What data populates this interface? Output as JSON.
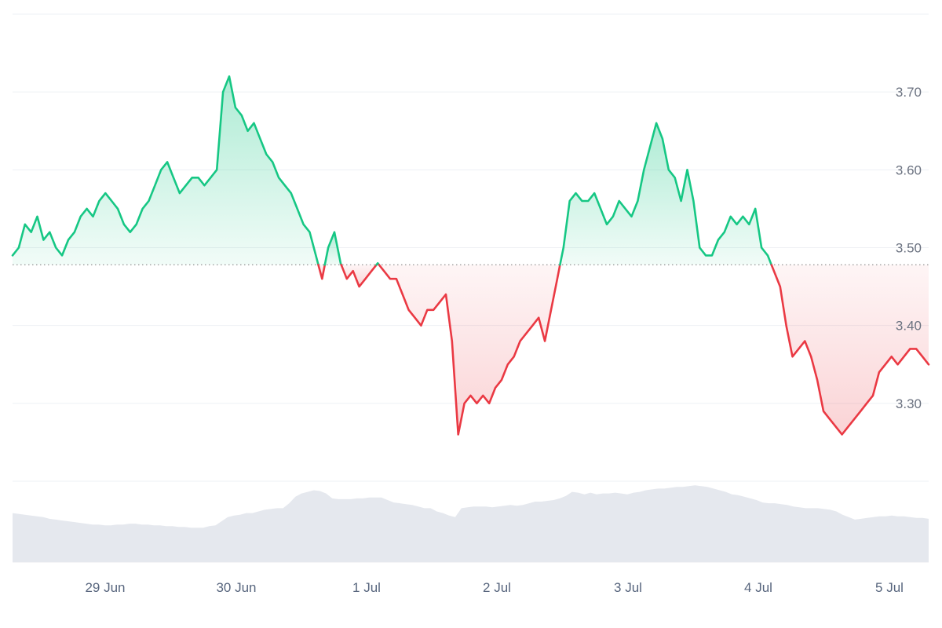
{
  "chart_data": {
    "type": "line",
    "title": "",
    "xlabel": "",
    "ylabel": "",
    "x_ticks": [
      "29 Jun",
      "30 Jun",
      "1 Jul",
      "2 Jul",
      "3 Jul",
      "4 Jul",
      "5 Jul"
    ],
    "y_ticks": [
      "3.30",
      "3.40",
      "3.50",
      "3.60",
      "3.70"
    ],
    "ylim": [
      3.2,
      3.8
    ],
    "baseline": 3.478,
    "grid": true,
    "colors": {
      "above": "#16c784",
      "below": "#ea3943",
      "volume": "#e5e8ee",
      "baseline": "#888888"
    },
    "series": [
      {
        "values": [
          3.49,
          3.5,
          3.53,
          3.52,
          3.54,
          3.51,
          3.52,
          3.5,
          3.49,
          3.51,
          3.52,
          3.54,
          3.55,
          3.54,
          3.56,
          3.57,
          3.56,
          3.55,
          3.53,
          3.52,
          3.53,
          3.55,
          3.56,
          3.58,
          3.6,
          3.61,
          3.59,
          3.57,
          3.58,
          3.59,
          3.59,
          3.58,
          3.59,
          3.6,
          3.7,
          3.72,
          3.68,
          3.67,
          3.65,
          3.66,
          3.64,
          3.62,
          3.61,
          3.59,
          3.58,
          3.57,
          3.55,
          3.53,
          3.52,
          3.49,
          3.46,
          3.5,
          3.52,
          3.48,
          3.46,
          3.47,
          3.45,
          3.46,
          3.47,
          3.48,
          3.47,
          3.46,
          3.46,
          3.44,
          3.42,
          3.41,
          3.4,
          3.42,
          3.42,
          3.43,
          3.44,
          3.38,
          3.26,
          3.3,
          3.31,
          3.3,
          3.31,
          3.3,
          3.32,
          3.33,
          3.35,
          3.36,
          3.38,
          3.39,
          3.4,
          3.41,
          3.38,
          3.42,
          3.46,
          3.5,
          3.56,
          3.57,
          3.56,
          3.56,
          3.57,
          3.55,
          3.53,
          3.54,
          3.56,
          3.55,
          3.54,
          3.56,
          3.6,
          3.63,
          3.66,
          3.64,
          3.6,
          3.59,
          3.56,
          3.6,
          3.56,
          3.5,
          3.49,
          3.49,
          3.51,
          3.52,
          3.54,
          3.53,
          3.54,
          3.53,
          3.55,
          3.5,
          3.49,
          3.47,
          3.45,
          3.4,
          3.36,
          3.37,
          3.38,
          3.36,
          3.33,
          3.29,
          3.28,
          3.27,
          3.26,
          3.27,
          3.28,
          3.29,
          3.3,
          3.31,
          3.34,
          3.35,
          3.36,
          3.35,
          3.36,
          3.37,
          3.37,
          3.36,
          3.35
        ]
      }
    ],
    "volume": [
      0.6,
      0.59,
      0.58,
      0.57,
      0.56,
      0.55,
      0.53,
      0.52,
      0.51,
      0.5,
      0.49,
      0.48,
      0.47,
      0.46,
      0.46,
      0.45,
      0.45,
      0.46,
      0.46,
      0.47,
      0.47,
      0.46,
      0.46,
      0.45,
      0.45,
      0.44,
      0.44,
      0.43,
      0.43,
      0.42,
      0.42,
      0.42,
      0.44,
      0.45,
      0.5,
      0.55,
      0.57,
      0.58,
      0.6,
      0.6,
      0.62,
      0.64,
      0.65,
      0.66,
      0.66,
      0.72,
      0.8,
      0.84,
      0.86,
      0.88,
      0.87,
      0.84,
      0.78,
      0.77,
      0.77,
      0.77,
      0.78,
      0.78,
      0.79,
      0.79,
      0.79,
      0.76,
      0.73,
      0.72,
      0.71,
      0.7,
      0.68,
      0.66,
      0.66,
      0.62,
      0.6,
      0.57,
      0.55,
      0.66,
      0.67,
      0.68,
      0.68,
      0.68,
      0.67,
      0.68,
      0.69,
      0.7,
      0.69,
      0.7,
      0.72,
      0.74,
      0.74,
      0.75,
      0.76,
      0.78,
      0.81,
      0.86,
      0.85,
      0.83,
      0.85,
      0.83,
      0.84,
      0.84,
      0.85,
      0.84,
      0.83,
      0.85,
      0.86,
      0.88,
      0.89,
      0.9,
      0.9,
      0.91,
      0.92,
      0.92,
      0.93,
      0.94,
      0.93,
      0.92,
      0.9,
      0.88,
      0.86,
      0.83,
      0.82,
      0.8,
      0.78,
      0.76,
      0.73,
      0.72,
      0.72,
      0.71,
      0.7,
      0.68,
      0.67,
      0.66,
      0.66,
      0.66,
      0.65,
      0.64,
      0.62,
      0.58,
      0.55,
      0.52,
      0.53,
      0.54,
      0.55,
      0.56,
      0.56,
      0.57,
      0.56,
      0.56,
      0.55,
      0.54,
      0.54,
      0.53
    ]
  }
}
